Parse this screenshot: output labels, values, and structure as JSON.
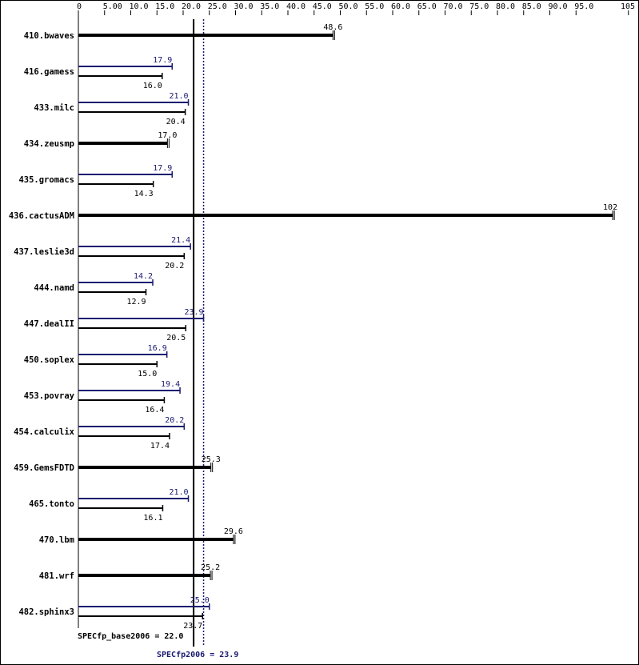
{
  "chart_data": {
    "type": "bar",
    "orientation": "horizontal",
    "x_ticks": [
      "0",
      "5.00",
      "10.0",
      "15.0",
      "20.0",
      "25.0",
      "30.0",
      "35.0",
      "40.0",
      "45.0",
      "50.0",
      "55.0",
      "60.0",
      "65.0",
      "70.0",
      "75.0",
      "80.0",
      "85.0",
      "90.0",
      "95.0",
      "105"
    ],
    "xlim": [
      0,
      105
    ],
    "series": [
      {
        "name": "SPECfp2006",
        "color": "#191970"
      },
      {
        "name": "SPECfp_base2006",
        "color": "#000000"
      }
    ],
    "categories": [
      {
        "name": "410.bwaves",
        "base": 48.6,
        "base_label": "48.6",
        "peak": null,
        "peak_label": null
      },
      {
        "name": "416.gamess",
        "base": 16.0,
        "base_label": "16.0",
        "peak": 17.9,
        "peak_label": "17.9"
      },
      {
        "name": "433.milc",
        "base": 20.4,
        "base_label": "20.4",
        "peak": 21.0,
        "peak_label": "21.0"
      },
      {
        "name": "434.zeusmp",
        "base": 17.0,
        "base_label": "17.0",
        "peak": null,
        "peak_label": null
      },
      {
        "name": "435.gromacs",
        "base": 14.3,
        "base_label": "14.3",
        "peak": 17.9,
        "peak_label": "17.9"
      },
      {
        "name": "436.cactusADM",
        "base": 102,
        "base_label": "102",
        "peak": null,
        "peak_label": null
      },
      {
        "name": "437.leslie3d",
        "base": 20.2,
        "base_label": "20.2",
        "peak": 21.4,
        "peak_label": "21.4"
      },
      {
        "name": "444.namd",
        "base": 12.9,
        "base_label": "12.9",
        "peak": 14.2,
        "peak_label": "14.2"
      },
      {
        "name": "447.dealII",
        "base": 20.5,
        "base_label": "20.5",
        "peak": 23.9,
        "peak_label": "23.9"
      },
      {
        "name": "450.soplex",
        "base": 15.0,
        "base_label": "15.0",
        "peak": 16.9,
        "peak_label": "16.9"
      },
      {
        "name": "453.povray",
        "base": 16.4,
        "base_label": "16.4",
        "peak": 19.4,
        "peak_label": "19.4"
      },
      {
        "name": "454.calculix",
        "base": 17.4,
        "base_label": "17.4",
        "peak": 20.2,
        "peak_label": "20.2"
      },
      {
        "name": "459.GemsFDTD",
        "base": 25.3,
        "base_label": "25.3",
        "peak": null,
        "peak_label": null
      },
      {
        "name": "465.tonto",
        "base": 16.1,
        "base_label": "16.1",
        "peak": 21.0,
        "peak_label": "21.0"
      },
      {
        "name": "470.lbm",
        "base": 29.6,
        "base_label": "29.6",
        "peak": null,
        "peak_label": null
      },
      {
        "name": "481.wrf",
        "base": 25.2,
        "base_label": "25.2",
        "peak": null,
        "peak_label": null
      },
      {
        "name": "482.sphinx3",
        "base": 23.7,
        "base_label": "23.7",
        "peak": 25.0,
        "peak_label": "25.0"
      }
    ],
    "reference_lines": [
      {
        "label": "SPECfp_base2006 = 22.0",
        "value": 22.0,
        "color": "#000000",
        "style": "solid"
      },
      {
        "label": "SPECfp2006 = 23.9",
        "value": 23.9,
        "color": "#191970",
        "style": "dotted"
      }
    ]
  }
}
